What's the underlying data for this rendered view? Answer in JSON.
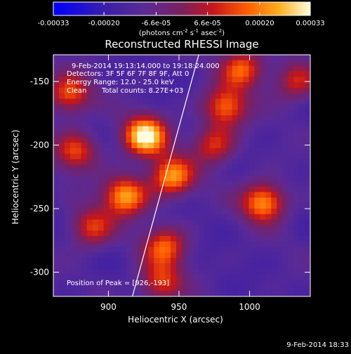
{
  "colorbar": {
    "ticks": [
      "-0.00033",
      "-0.00020",
      "-6.6e-05",
      "6.6e-05",
      "0.00020",
      "0.00033"
    ],
    "units_main": "(photons cm",
    "units_sup1": "-2",
    "units_mid": " s",
    "units_sup2": "-1",
    "units_mid2": " asec",
    "units_sup3": "-2",
    "units_end": ")",
    "range": [
      -0.00033,
      0.00033
    ]
  },
  "chart_data": {
    "type": "heatmap",
    "title": "Reconstructed RHESSI Image",
    "xlabel": "Heliocentric X (arcsec)",
    "ylabel": "Heliocentric Y (arcsec)",
    "xlim": [
      861,
      1043
    ],
    "ylim": [
      -319,
      -129
    ],
    "x_ticks": [
      900,
      950,
      1000
    ],
    "y_ticks": [
      -300,
      -250,
      -200,
      -150
    ],
    "x_tick_labels": [
      "900",
      "950",
      "1000"
    ],
    "y_tick_labels": [
      "-300",
      "-250",
      "-200",
      "-150"
    ],
    "colormap": "blue-purple-red-orange-yellow-white",
    "sources": [
      {
        "x": 926,
        "y": -193,
        "peak": 0.00033
      },
      {
        "x": 912,
        "y": -240,
        "peak": 0.00024
      },
      {
        "x": 945,
        "y": -225,
        "peak": 0.00022
      },
      {
        "x": 1010,
        "y": -245,
        "peak": 0.00023
      },
      {
        "x": 983,
        "y": -170,
        "peak": 0.00017
      },
      {
        "x": 995,
        "y": -140,
        "peak": 0.00016
      },
      {
        "x": 872,
        "y": -160,
        "peak": 0.00016
      },
      {
        "x": 877,
        "y": -205,
        "peak": 0.00013
      },
      {
        "x": 888,
        "y": -265,
        "peak": 0.00012
      },
      {
        "x": 940,
        "y": -280,
        "peak": 0.00015
      },
      {
        "x": 937,
        "y": -308,
        "peak": 0.00012
      },
      {
        "x": 1033,
        "y": -150,
        "peak": 0.0001
      },
      {
        "x": 975,
        "y": -200,
        "peak": 0.00011
      }
    ],
    "limb_line": {
      "x": [
        917,
        964
      ],
      "y": [
        -319,
        -129
      ]
    },
    "annotations": [
      "9-Feb-2014 19:13:14.000 to 19:18:24.000",
      "Detectors: 3F 5F 6F 7F 8F 9F, Att 0",
      "Energy Range: 12.0 - 25.0 keV",
      "Clean",
      "Total counts: 8.27E+03",
      "Position of Peak = [926,-193]"
    ]
  },
  "footer": {
    "timestamp": "9-Feb-2014 18:33"
  }
}
